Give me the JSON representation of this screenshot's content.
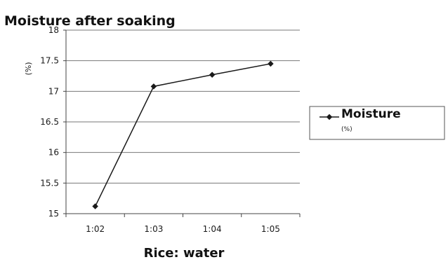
{
  "chart_data": {
    "type": "line",
    "title": "Moisture after soaking",
    "xlabel": "Rice: water",
    "ylabel_unit": "(%)",
    "categories": [
      "1:02",
      "1:03",
      "1:04",
      "1:05"
    ],
    "series": [
      {
        "name": "Moisture",
        "unit": "(%)",
        "values": [
          15.12,
          17.08,
          17.27,
          17.45
        ],
        "color": "#1a1a1a"
      }
    ],
    "ylim": [
      15,
      18
    ],
    "yticks": [
      "15",
      "15.5",
      "16",
      "16.5",
      "17",
      "17.5",
      "18"
    ],
    "grid": true,
    "legend_position": "right"
  }
}
